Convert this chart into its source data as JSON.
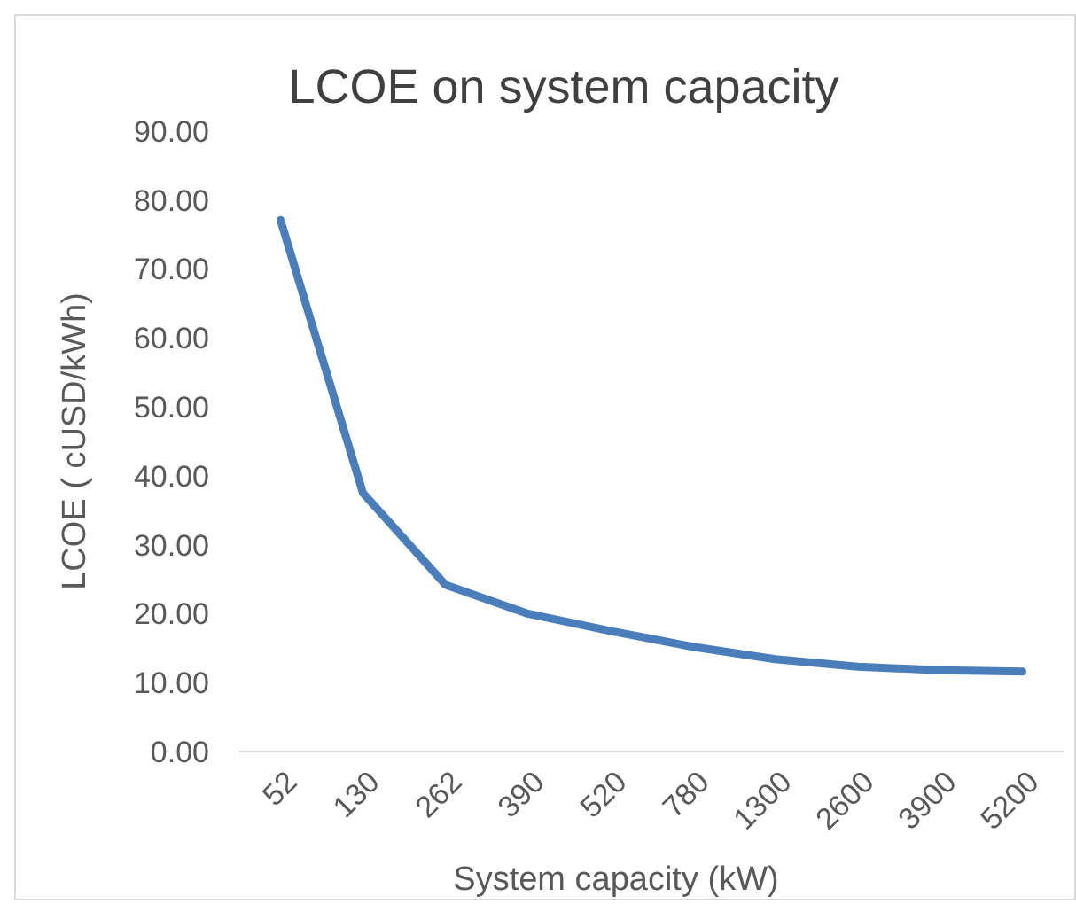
{
  "chart_data": {
    "type": "line",
    "title": "LCOE on system capacity",
    "xlabel": "System capacity (kW)",
    "ylabel": "LCOE ( cUSD/kWh)",
    "categories": [
      "52",
      "130",
      "262",
      "390",
      "520",
      "780",
      "1300",
      "2600",
      "3900",
      "5200"
    ],
    "series": [
      {
        "color": "#4a7ebb",
        "values": [
          77.1,
          37.5,
          24.2,
          20.0,
          17.5,
          15.2,
          13.4,
          12.3,
          11.8,
          11.6
        ]
      }
    ],
    "ylim": [
      0,
      90
    ],
    "yticks": [
      {
        "value": 0,
        "label": "0.00"
      },
      {
        "value": 10,
        "label": "10.00"
      },
      {
        "value": 20,
        "label": "20.00"
      },
      {
        "value": 30,
        "label": "30.00"
      },
      {
        "value": 40,
        "label": "40.00"
      },
      {
        "value": 50,
        "label": "50.00"
      },
      {
        "value": 60,
        "label": "60.00"
      },
      {
        "value": 70,
        "label": "70.00"
      },
      {
        "value": 80,
        "label": "80.00"
      },
      {
        "value": 90,
        "label": "90.00"
      }
    ],
    "grid": false,
    "marker": "none",
    "line_style": "solid"
  }
}
